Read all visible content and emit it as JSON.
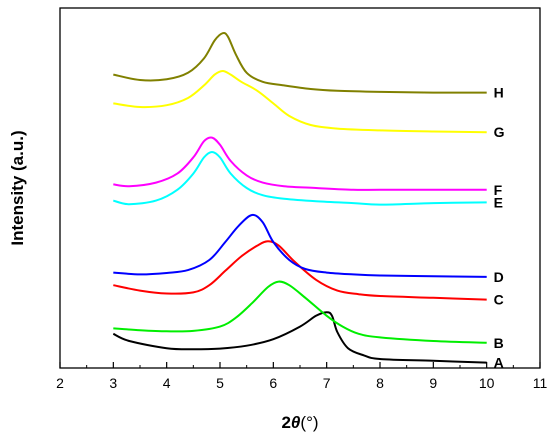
{
  "chart_data": {
    "type": "line",
    "xlabel": "2θ(°)",
    "xlabel_parts": {
      "prefix": "2",
      "theta": "θ",
      "unit": "(°)"
    },
    "ylabel": "Intensity (a.u.)",
    "xlim": [
      2,
      11
    ],
    "ylim": [
      0,
      100
    ],
    "x_ticks": [
      "2",
      "3",
      "4",
      "5",
      "6",
      "7",
      "8",
      "9",
      "10",
      "11"
    ],
    "y_ticks_shown": false,
    "grid": false,
    "legend": "none",
    "series": [
      {
        "name": "A",
        "color": "#000000",
        "x": [
          3,
          3.3,
          4,
          4.5,
          5,
          5.5,
          6,
          6.5,
          6.8,
          7,
          7.1,
          7.2,
          7.4,
          7.7,
          8,
          9,
          10
        ],
        "y": [
          9.5,
          7.5,
          5.5,
          5.2,
          5.4,
          6.2,
          8,
          11.5,
          14.5,
          15.5,
          14.5,
          10,
          5.5,
          3.5,
          2.5,
          2,
          1.5
        ]
      },
      {
        "name": "B",
        "color": "#00ee00",
        "x": [
          3,
          3.5,
          4,
          4.5,
          5,
          5.3,
          5.6,
          5.9,
          6.1,
          6.3,
          6.6,
          7,
          7.3,
          7.6,
          8,
          9,
          10
        ],
        "y": [
          11,
          10.5,
          10.2,
          10.3,
          11.5,
          14,
          18,
          22.5,
          24,
          23,
          19.5,
          14.5,
          11.5,
          9.5,
          8.5,
          7.5,
          7
        ]
      },
      {
        "name": "C",
        "color": "#ff0000",
        "x": [
          3,
          3.5,
          4,
          4.5,
          4.8,
          5.1,
          5.4,
          5.7,
          5.9,
          6.1,
          6.4,
          6.8,
          7.2,
          7.6,
          8,
          9,
          10
        ],
        "y": [
          23,
          21.5,
          20.7,
          21,
          23,
          27,
          31,
          34,
          35.2,
          34,
          29.5,
          24.5,
          21.5,
          20.5,
          20,
          19.5,
          19
        ]
      },
      {
        "name": "D",
        "color": "#0000ff",
        "x": [
          3,
          3.5,
          4,
          4.4,
          4.8,
          5.1,
          5.35,
          5.6,
          5.8,
          6,
          6.3,
          6.6,
          7,
          7.5,
          8,
          9,
          10
        ],
        "y": [
          26.5,
          26,
          26.4,
          27.2,
          30,
          35,
          39.5,
          42.5,
          40.5,
          35,
          30,
          27.5,
          26.5,
          26,
          25.7,
          25.5,
          25.3
        ]
      },
      {
        "name": "E",
        "color": "#00ffff",
        "x": [
          3,
          3.3,
          3.8,
          4.2,
          4.5,
          4.7,
          4.85,
          5,
          5.2,
          5.5,
          5.8,
          6.2,
          6.8,
          7.5,
          8,
          9,
          10
        ],
        "y": [
          46.5,
          45.5,
          46.5,
          49.5,
          54,
          58.5,
          60,
          58.5,
          54,
          50,
          48,
          47,
          46.3,
          45.8,
          45.4,
          45.8,
          46
        ]
      },
      {
        "name": "F",
        "color": "#ff00ff",
        "x": [
          3,
          3.3,
          3.8,
          4.2,
          4.5,
          4.7,
          4.85,
          5,
          5.2,
          5.5,
          5.8,
          6.2,
          6.8,
          7.5,
          8,
          9,
          10
        ],
        "y": [
          51,
          50.5,
          51.5,
          54,
          58.5,
          63,
          64,
          62,
          57.5,
          53.5,
          51.5,
          50.5,
          50,
          49.5,
          49.5,
          49.5,
          49.5
        ]
      },
      {
        "name": "G",
        "color": "#ffff00",
        "x": [
          3,
          3.5,
          4,
          4.4,
          4.7,
          4.9,
          5.05,
          5.2,
          5.4,
          5.7,
          6,
          6.3,
          6.7,
          7.2,
          8,
          9,
          10
        ],
        "y": [
          73.5,
          72.5,
          73,
          75,
          78.5,
          81.5,
          82.5,
          81.5,
          79.5,
          77,
          73.5,
          70,
          67.5,
          66.5,
          66,
          65.7,
          65.5
        ]
      },
      {
        "name": "H",
        "color": "#808000",
        "x": [
          3,
          3.5,
          4,
          4.4,
          4.7,
          4.9,
          5.05,
          5.15,
          5.3,
          5.5,
          5.8,
          6.2,
          6.7,
          7.2,
          8,
          9,
          10
        ],
        "y": [
          81.5,
          80,
          80.2,
          82,
          86,
          91,
          93,
          92,
          87,
          82,
          79.5,
          78.5,
          77.5,
          77,
          76.7,
          76.5,
          76.5
        ]
      }
    ]
  }
}
